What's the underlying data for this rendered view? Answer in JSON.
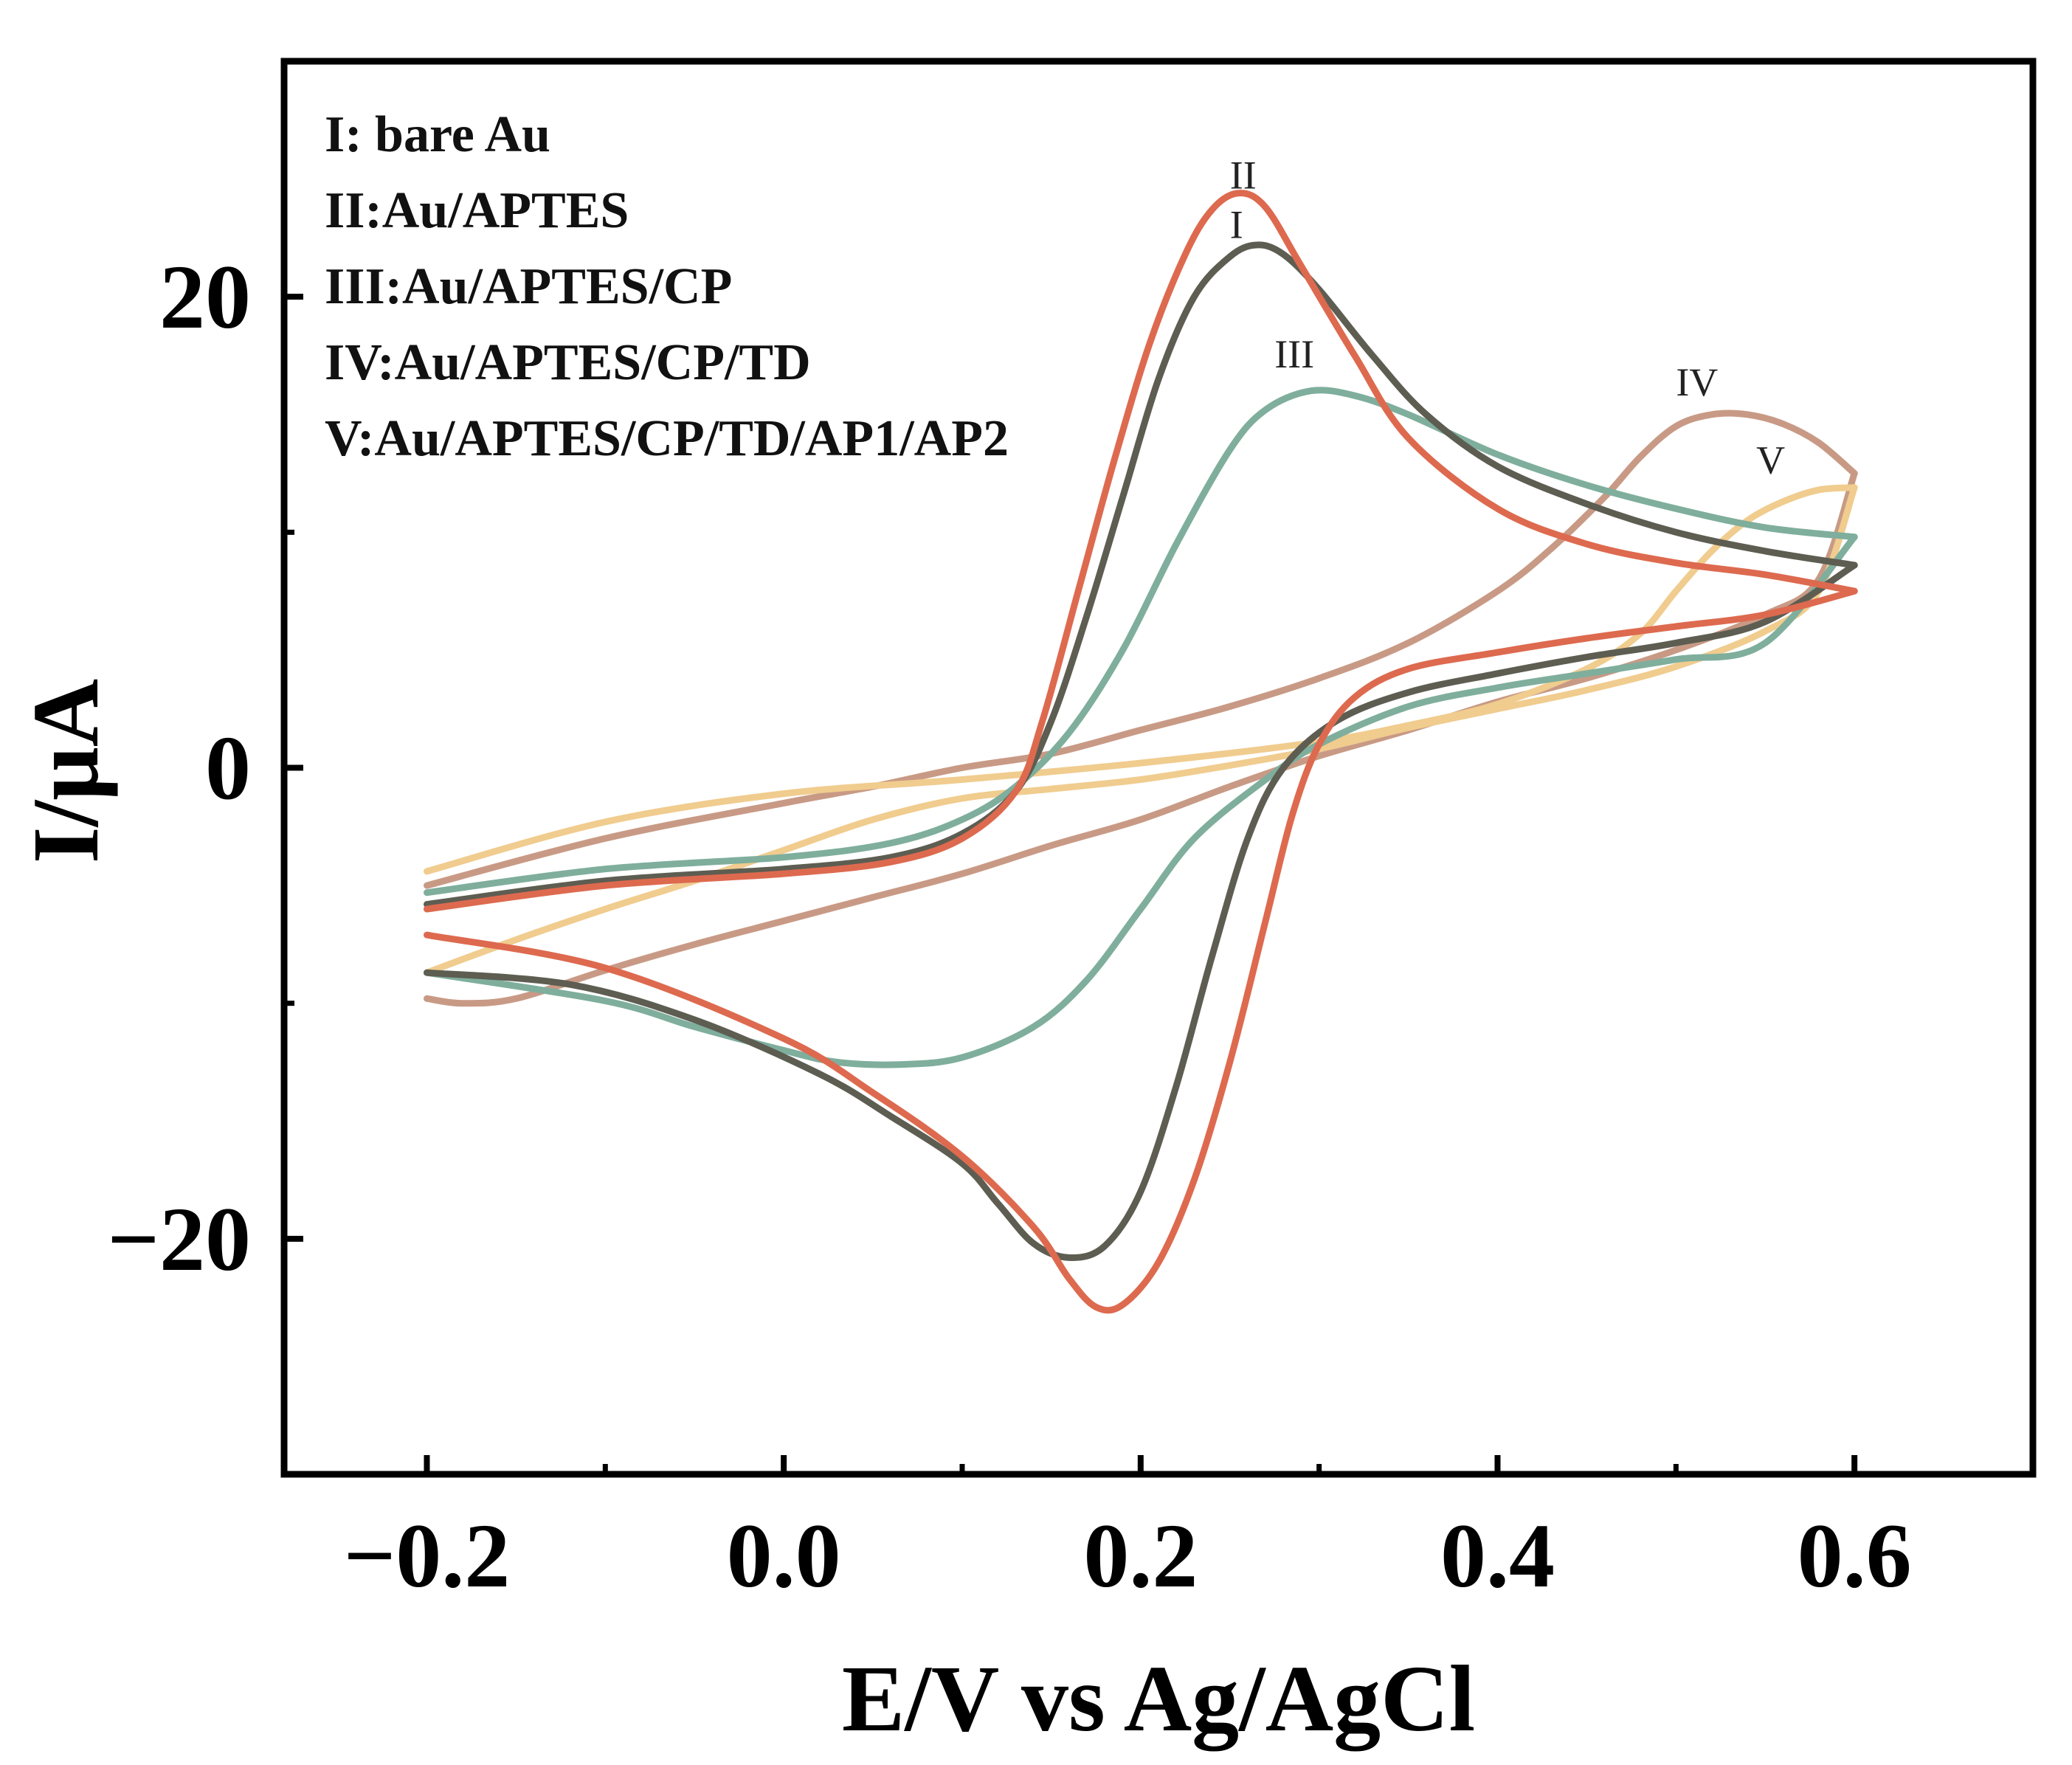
{
  "chart_data": {
    "type": "line",
    "title": "",
    "xlabel": "E/V vs Ag/AgCl",
    "ylabel": "I/μA",
    "xlim": [
      -0.28,
      0.7
    ],
    "ylim": [
      -30,
      30
    ],
    "xticks": [
      -0.2,
      0.0,
      0.2,
      0.4,
      0.6
    ],
    "xtick_labels": [
      "−0.2",
      "0.0",
      "0.2",
      "0.4",
      "0.6"
    ],
    "yticks": [
      -20,
      0,
      20
    ],
    "ytick_labels": [
      "−20",
      "0",
      "20"
    ],
    "x_minor_ticks": [
      -0.1,
      0.1,
      0.3,
      0.5
    ],
    "y_minor_ticks": [
      -10,
      10
    ],
    "legend": [
      "I: bare Au",
      "II:Au/APTES",
      "III:Au/APTES/CP",
      "IV:Au/APTES/CP/TD",
      "V:Au/APTES/CP/TD/AP1/AP2"
    ],
    "series": [
      {
        "name": "I",
        "label": "I",
        "color": "#5d5d52",
        "label_at": [
          0.25,
          22.5
        ],
        "forward": [
          [
            -0.2,
            -5.8
          ],
          [
            -0.1,
            -4.8
          ],
          [
            0.0,
            -4.3
          ],
          [
            0.06,
            -3.8
          ],
          [
            0.1,
            -2.8
          ],
          [
            0.13,
            -1.0
          ],
          [
            0.15,
            2.0
          ],
          [
            0.17,
            6.5
          ],
          [
            0.19,
            11.5
          ],
          [
            0.21,
            16.5
          ],
          [
            0.23,
            20.0
          ],
          [
            0.25,
            21.7
          ],
          [
            0.265,
            22.2
          ],
          [
            0.28,
            21.8
          ],
          [
            0.3,
            20.3
          ],
          [
            0.33,
            17.5
          ],
          [
            0.36,
            15.0
          ],
          [
            0.4,
            12.8
          ],
          [
            0.45,
            11.2
          ],
          [
            0.5,
            10.0
          ],
          [
            0.55,
            9.2
          ],
          [
            0.6,
            8.6
          ]
        ],
        "reverse": [
          [
            0.6,
            8.6
          ],
          [
            0.55,
            6.2
          ],
          [
            0.5,
            5.3
          ],
          [
            0.45,
            4.7
          ],
          [
            0.4,
            4.0
          ],
          [
            0.35,
            3.2
          ],
          [
            0.31,
            2.0
          ],
          [
            0.28,
            0.0
          ],
          [
            0.26,
            -3.0
          ],
          [
            0.24,
            -8.0
          ],
          [
            0.22,
            -13.5
          ],
          [
            0.2,
            -18.0
          ],
          [
            0.18,
            -20.3
          ],
          [
            0.16,
            -20.8
          ],
          [
            0.14,
            -20.2
          ],
          [
            0.12,
            -18.5
          ],
          [
            0.1,
            -16.8
          ],
          [
            0.06,
            -14.8
          ],
          [
            0.02,
            -13.0
          ],
          [
            -0.05,
            -10.7
          ],
          [
            -0.12,
            -9.2
          ],
          [
            -0.2,
            -8.7
          ]
        ]
      },
      {
        "name": "II",
        "label": "II",
        "color": "#dd6a4f",
        "label_at": [
          0.25,
          24.6
        ],
        "forward": [
          [
            -0.2,
            -6.0
          ],
          [
            -0.1,
            -5.0
          ],
          [
            0.0,
            -4.5
          ],
          [
            0.06,
            -4.0
          ],
          [
            0.1,
            -3.0
          ],
          [
            0.13,
            -1.0
          ],
          [
            0.145,
            2.0
          ],
          [
            0.165,
            7.5
          ],
          [
            0.185,
            13.0
          ],
          [
            0.205,
            18.0
          ],
          [
            0.225,
            21.8
          ],
          [
            0.24,
            23.7
          ],
          [
            0.255,
            24.4
          ],
          [
            0.27,
            23.8
          ],
          [
            0.29,
            21.3
          ],
          [
            0.32,
            17.5
          ],
          [
            0.35,
            14.0
          ],
          [
            0.4,
            11.0
          ],
          [
            0.45,
            9.5
          ],
          [
            0.5,
            8.7
          ],
          [
            0.55,
            8.2
          ],
          [
            0.6,
            7.5
          ]
        ],
        "reverse": [
          [
            0.6,
            7.5
          ],
          [
            0.55,
            6.5
          ],
          [
            0.5,
            6.0
          ],
          [
            0.45,
            5.5
          ],
          [
            0.4,
            4.9
          ],
          [
            0.35,
            4.2
          ],
          [
            0.32,
            3.0
          ],
          [
            0.3,
            1.0
          ],
          [
            0.285,
            -2.0
          ],
          [
            0.27,
            -6.5
          ],
          [
            0.25,
            -12.5
          ],
          [
            0.23,
            -17.5
          ],
          [
            0.21,
            -21.0
          ],
          [
            0.19,
            -22.8
          ],
          [
            0.175,
            -22.9
          ],
          [
            0.16,
            -21.7
          ],
          [
            0.14,
            -19.5
          ],
          [
            0.1,
            -16.5
          ],
          [
            0.05,
            -13.8
          ],
          [
            0.0,
            -11.5
          ],
          [
            -0.1,
            -8.5
          ],
          [
            -0.2,
            -7.1
          ]
        ]
      },
      {
        "name": "III",
        "label": "III",
        "color": "#7fae9d",
        "label_at": [
          0.275,
          17.0
        ],
        "forward": [
          [
            -0.2,
            -5.3
          ],
          [
            -0.1,
            -4.3
          ],
          [
            0.0,
            -3.8
          ],
          [
            0.06,
            -3.2
          ],
          [
            0.1,
            -2.2
          ],
          [
            0.13,
            -0.8
          ],
          [
            0.16,
            1.5
          ],
          [
            0.19,
            5.0
          ],
          [
            0.22,
            9.5
          ],
          [
            0.25,
            13.5
          ],
          [
            0.27,
            15.2
          ],
          [
            0.295,
            16.0
          ],
          [
            0.32,
            15.8
          ],
          [
            0.35,
            15.0
          ],
          [
            0.4,
            13.3
          ],
          [
            0.45,
            12.0
          ],
          [
            0.5,
            11.0
          ],
          [
            0.55,
            10.2
          ],
          [
            0.6,
            9.8
          ]
        ],
        "reverse": [
          [
            0.6,
            9.8
          ],
          [
            0.55,
            5.3
          ],
          [
            0.5,
            4.6
          ],
          [
            0.45,
            4.0
          ],
          [
            0.4,
            3.4
          ],
          [
            0.35,
            2.6
          ],
          [
            0.3,
            1.0
          ],
          [
            0.27,
            -0.5
          ],
          [
            0.23,
            -3.0
          ],
          [
            0.2,
            -6.0
          ],
          [
            0.17,
            -9.0
          ],
          [
            0.14,
            -11.0
          ],
          [
            0.1,
            -12.3
          ],
          [
            0.065,
            -12.6
          ],
          [
            0.03,
            -12.5
          ],
          [
            0.0,
            -12.0
          ],
          [
            -0.05,
            -11.0
          ],
          [
            -0.1,
            -9.9
          ],
          [
            -0.2,
            -8.7
          ]
        ]
      },
      {
        "name": "IV",
        "label": "IV",
        "color": "#c89a85",
        "label_at": [
          0.5,
          15.8
        ],
        "forward": [
          [
            -0.2,
            -5.0
          ],
          [
            -0.1,
            -3.0
          ],
          [
            0.0,
            -1.5
          ],
          [
            0.05,
            -0.8
          ],
          [
            0.1,
            0.0
          ],
          [
            0.15,
            0.6
          ],
          [
            0.2,
            1.6
          ],
          [
            0.25,
            2.6
          ],
          [
            0.3,
            3.8
          ],
          [
            0.35,
            5.3
          ],
          [
            0.4,
            7.5
          ],
          [
            0.43,
            9.3
          ],
          [
            0.46,
            11.5
          ],
          [
            0.48,
            13.2
          ],
          [
            0.5,
            14.5
          ],
          [
            0.52,
            15.0
          ],
          [
            0.54,
            15.0
          ],
          [
            0.56,
            14.6
          ],
          [
            0.58,
            13.8
          ],
          [
            0.6,
            12.5
          ]
        ],
        "reverse": [
          [
            0.6,
            12.5
          ],
          [
            0.58,
            8.0
          ],
          [
            0.55,
            6.5
          ],
          [
            0.5,
            5.0
          ],
          [
            0.45,
            3.8
          ],
          [
            0.4,
            2.8
          ],
          [
            0.35,
            1.6
          ],
          [
            0.3,
            0.5
          ],
          [
            0.25,
            -0.8
          ],
          [
            0.2,
            -2.2
          ],
          [
            0.15,
            -3.3
          ],
          [
            0.1,
            -4.5
          ],
          [
            0.05,
            -5.5
          ],
          [
            0.0,
            -6.5
          ],
          [
            -0.05,
            -7.5
          ],
          [
            -0.1,
            -8.6
          ],
          [
            -0.15,
            -9.8
          ],
          [
            -0.18,
            -10.0
          ],
          [
            -0.2,
            -9.8
          ]
        ]
      },
      {
        "name": "V",
        "label": "V",
        "color": "#f0cc8e",
        "label_at": [
          0.545,
          12.5
        ],
        "forward": [
          [
            -0.2,
            -4.4
          ],
          [
            -0.1,
            -2.3
          ],
          [
            0.0,
            -1.1
          ],
          [
            0.1,
            -0.5
          ],
          [
            0.2,
            0.2
          ],
          [
            0.3,
            1.1
          ],
          [
            0.35,
            1.8
          ],
          [
            0.4,
            2.7
          ],
          [
            0.45,
            4.2
          ],
          [
            0.48,
            5.7
          ],
          [
            0.5,
            7.5
          ],
          [
            0.52,
            9.2
          ],
          [
            0.54,
            10.5
          ],
          [
            0.56,
            11.3
          ],
          [
            0.58,
            11.8
          ],
          [
            0.6,
            11.9
          ]
        ],
        "reverse": [
          [
            0.6,
            11.9
          ],
          [
            0.58,
            7.5
          ],
          [
            0.55,
            5.8
          ],
          [
            0.5,
            4.3
          ],
          [
            0.45,
            3.3
          ],
          [
            0.4,
            2.5
          ],
          [
            0.35,
            1.7
          ],
          [
            0.3,
            0.8
          ],
          [
            0.25,
            0.1
          ],
          [
            0.2,
            -0.5
          ],
          [
            0.15,
            -0.9
          ],
          [
            0.1,
            -1.3
          ],
          [
            0.05,
            -2.2
          ],
          [
            0.0,
            -3.5
          ],
          [
            -0.05,
            -4.8
          ],
          [
            -0.1,
            -6.0
          ],
          [
            -0.15,
            -7.3
          ],
          [
            -0.2,
            -8.7
          ]
        ]
      }
    ]
  }
}
